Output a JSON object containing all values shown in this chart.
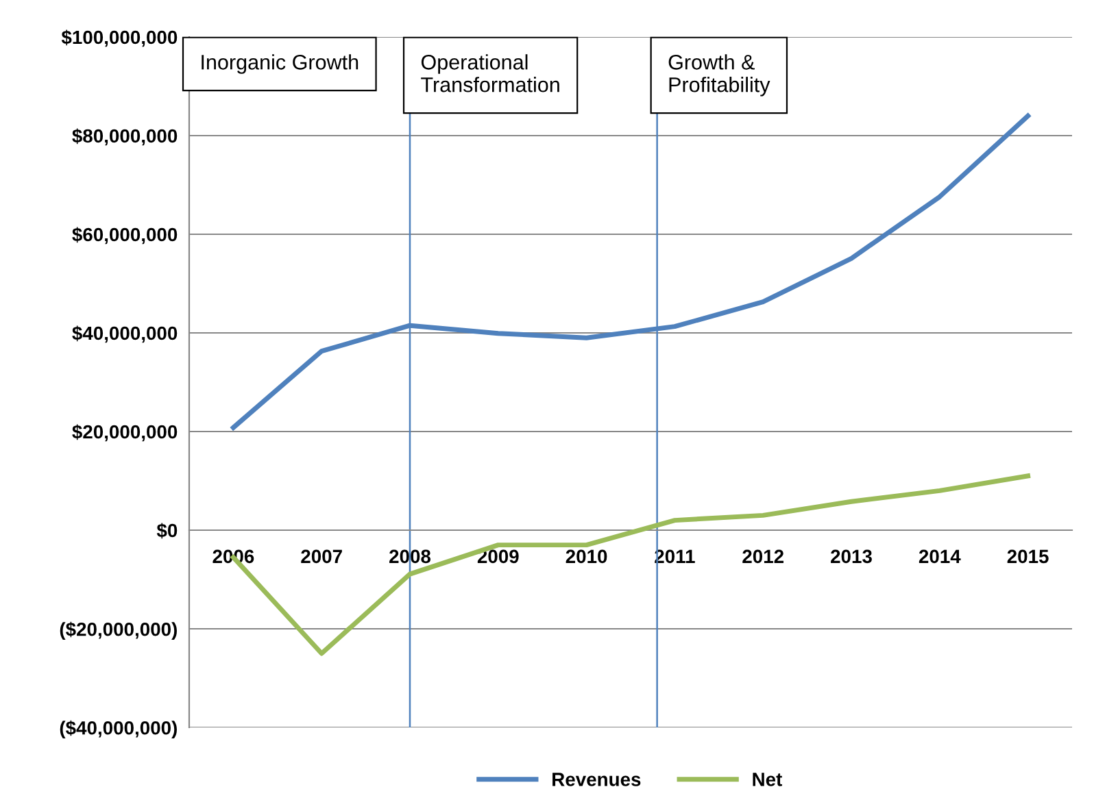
{
  "chart_data": {
    "type": "line",
    "x": [
      2006,
      2007,
      2008,
      2009,
      2010,
      2011,
      2012,
      2013,
      2014,
      2015
    ],
    "series": [
      {
        "name": "Revenues",
        "color": "#4f81bd",
        "values": [
          20800000,
          36300000,
          41500000,
          39900000,
          39000000,
          41300000,
          46300000,
          55100000,
          67600000,
          84000000
        ]
      },
      {
        "name": "Net",
        "color": "#9bbb59",
        "values": [
          -5500000,
          -25000000,
          -8900000,
          -3000000,
          -3000000,
          2000000,
          3000000,
          5800000,
          8000000,
          11000000
        ]
      }
    ],
    "xlim": [
      2005.5,
      2015.5
    ],
    "xticks": [
      2006,
      2007,
      2008,
      2009,
      2010,
      2011,
      2012,
      2013,
      2014,
      2015
    ],
    "ylim": [
      -40000000,
      100000000
    ],
    "yticks": [
      {
        "value": -40000000,
        "label": "($40,000,000)"
      },
      {
        "value": -20000000,
        "label": "($20,000,000)"
      },
      {
        "value": 0,
        "label": "$0"
      },
      {
        "value": 20000000,
        "label": "$20,000,000"
      },
      {
        "value": 40000000,
        "label": "$40,000,000"
      },
      {
        "value": 60000000,
        "label": "$60,000,000"
      },
      {
        "value": 80000000,
        "label": "$80,000,000"
      },
      {
        "value": 100000000,
        "label": "$100,000,000"
      }
    ],
    "ref_lines": [
      {
        "axis": "x",
        "value": 2008,
        "color": "#4f81bd"
      },
      {
        "axis": "x",
        "value": 2010.8,
        "color": "#4f81bd"
      }
    ],
    "annotations": [
      "Inorganic Growth",
      "Operational\nTransformation",
      "Growth &\nProfitability"
    ],
    "grid": "y",
    "legend": "bottom",
    "marker": "none",
    "line_style": "solid"
  }
}
